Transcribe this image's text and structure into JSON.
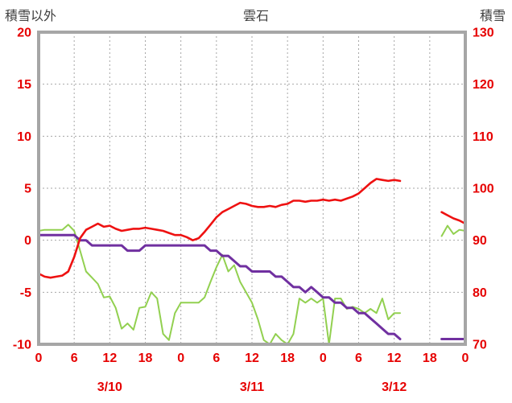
{
  "chart_data": {
    "type": "line",
    "title": "雲石",
    "left_axis": {
      "label": "積雪以外",
      "min": -10,
      "max": 20,
      "ticks": [
        20,
        15,
        10,
        5,
        0,
        -5,
        -10
      ]
    },
    "right_axis": {
      "label": "積雪",
      "min": 70,
      "max": 130,
      "ticks": [
        130,
        120,
        110,
        100,
        90,
        80,
        70
      ]
    },
    "x_axis": {
      "total_hours": 72,
      "tick_step_hours": 6,
      "tick_labels": [
        "0",
        "6",
        "12",
        "18",
        "0",
        "6",
        "12",
        "18",
        "0",
        "6",
        "12",
        "18",
        "0"
      ],
      "day_labels": [
        {
          "text": "3/10",
          "hour": 12
        },
        {
          "text": "3/11",
          "hour": 36
        },
        {
          "text": "3/12",
          "hour": 60
        }
      ]
    },
    "style": {
      "tick_label_color": "#e60000",
      "grid_color": "#a6a6a6",
      "grid_dash": "2 3",
      "border_color": "#a6a6a6",
      "border_width": 4
    },
    "series": [
      {
        "name": "green-line",
        "axis": "left",
        "color": "#92d050",
        "width": 2,
        "values": [
          0.9,
          1.0,
          1.0,
          1.0,
          1.0,
          1.5,
          0.9,
          -1.0,
          -3.0,
          -3.6,
          -4.2,
          -5.5,
          -5.4,
          -6.5,
          -8.5,
          -8.0,
          -8.6,
          -6.5,
          -6.4,
          -5.0,
          -5.6,
          -9.0,
          -9.6,
          -7.0,
          -6.0,
          -6.0,
          -6.0,
          -6.0,
          -5.5,
          -4.0,
          -2.6,
          -1.4,
          -3.0,
          -2.4,
          -4.0,
          -5.0,
          -6.0,
          -7.6,
          -9.6,
          -10.0,
          -9.0,
          -9.6,
          -10.0,
          -9.0,
          -5.6,
          -6.0,
          -5.6,
          -6.0,
          -5.6,
          -10.0,
          -5.6,
          -5.6,
          -6.6,
          -6.4,
          -6.6,
          -7.0,
          -6.6,
          -7.0,
          -5.6,
          -7.6,
          -7.0,
          -7.0,
          null,
          null,
          null,
          null,
          null,
          null,
          0.4,
          1.4,
          0.6,
          1.0,
          0.9
        ]
      },
      {
        "name": "purple-line",
        "axis": "right",
        "color": "#7030a0",
        "width": 3,
        "values": [
          91,
          91,
          91,
          91,
          91,
          91,
          91,
          90,
          90,
          89,
          89,
          89,
          89,
          89,
          89,
          88,
          88,
          88,
          89,
          89,
          89,
          89,
          89,
          89,
          89,
          89,
          89,
          89,
          89,
          88,
          88,
          87,
          87,
          86,
          85,
          85,
          84,
          84,
          84,
          84,
          83,
          83,
          82,
          81,
          81,
          80,
          81,
          80,
          79,
          79,
          78,
          78,
          77,
          77,
          76,
          76,
          75,
          74,
          73,
          72,
          72,
          71,
          null,
          null,
          null,
          null,
          null,
          null,
          71,
          71,
          71,
          71,
          71
        ]
      },
      {
        "name": "red-line",
        "axis": "left",
        "color": "#ee1111",
        "width": 2.6,
        "values": [
          -3.2,
          -3.5,
          -3.6,
          -3.5,
          -3.4,
          -3.0,
          -1.6,
          0.2,
          1.0,
          1.3,
          1.6,
          1.3,
          1.4,
          1.1,
          0.9,
          1.0,
          1.1,
          1.1,
          1.2,
          1.1,
          1.0,
          0.9,
          0.7,
          0.5,
          0.5,
          0.3,
          0.0,
          0.2,
          0.8,
          1.5,
          2.2,
          2.7,
          3.0,
          3.3,
          3.6,
          3.5,
          3.3,
          3.2,
          3.2,
          3.3,
          3.2,
          3.4,
          3.5,
          3.8,
          3.8,
          3.7,
          3.8,
          3.8,
          3.9,
          3.8,
          3.9,
          3.8,
          4.0,
          4.2,
          4.5,
          5.0,
          5.5,
          5.9,
          5.8,
          5.7,
          5.8,
          5.7,
          null,
          null,
          null,
          null,
          null,
          null,
          2.7,
          2.4,
          2.1,
          1.9,
          1.6
        ]
      }
    ]
  }
}
